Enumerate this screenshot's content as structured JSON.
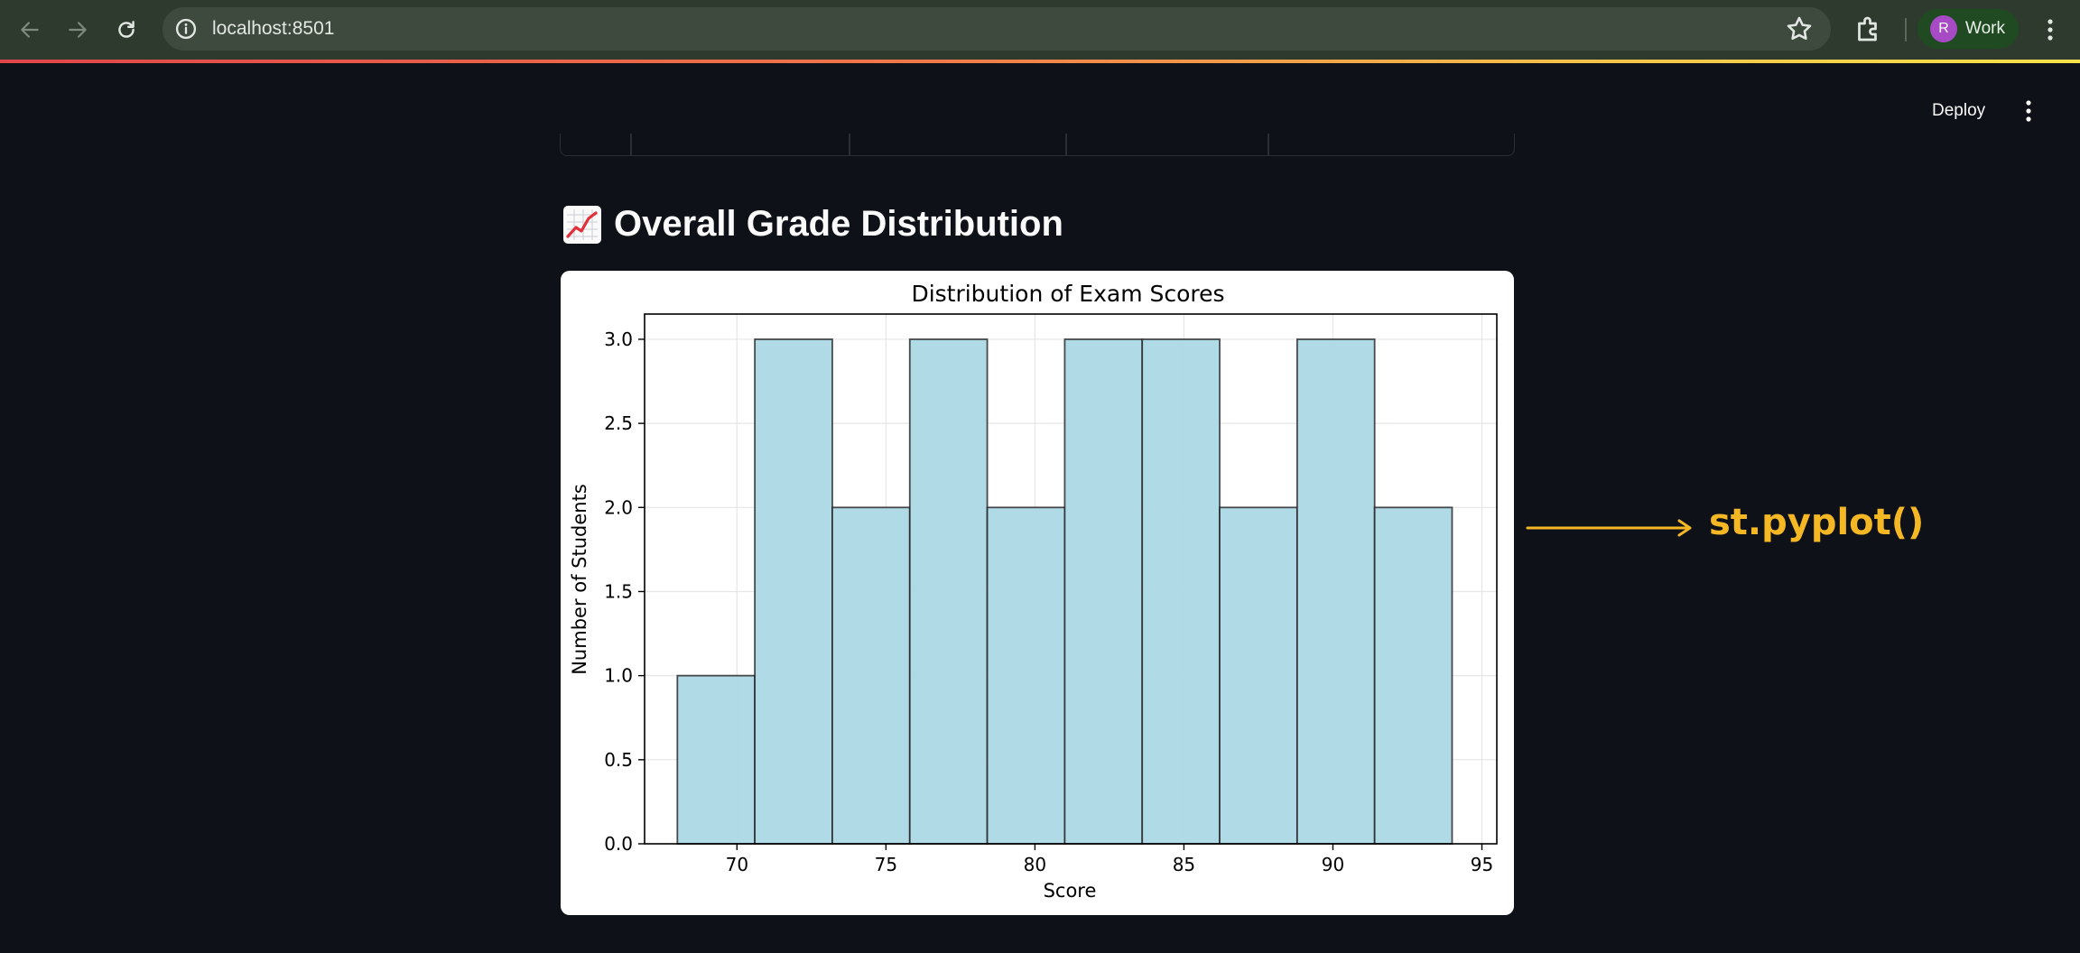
{
  "browser": {
    "url": "localhost:8501",
    "profile": {
      "initial": "R",
      "label": "Work"
    }
  },
  "app_header": {
    "deploy_label": "Deploy"
  },
  "section": {
    "heading": "Overall Grade Distribution",
    "heading_icon": "chart-increasing-emoji"
  },
  "chart_data": {
    "type": "bar",
    "title": "Distribution of Exam Scores",
    "xlabel": "Score",
    "ylabel": "Number of Students",
    "bin_edges": [
      68,
      70.6,
      73.2,
      75.8,
      78.4,
      81,
      83.6,
      86.2,
      88.8,
      91.4,
      94
    ],
    "values": [
      1,
      3,
      2,
      3,
      2,
      3,
      3,
      2,
      3,
      2
    ],
    "xlim": [
      66.9,
      95.5
    ],
    "ylim": [
      0,
      3.15
    ],
    "x_ticks": [
      "70",
      "75",
      "80",
      "85",
      "90",
      "95"
    ],
    "y_ticks": [
      "0.0",
      "0.5",
      "1.0",
      "1.5",
      "2.0",
      "2.5",
      "3.0"
    ],
    "grid": true,
    "bar_color": "#add8e6",
    "edge_color": "#000000"
  },
  "annotation": {
    "label": "st.pyplot()",
    "color": "#f5b824"
  },
  "colors": {
    "app_background": "#0e1117",
    "browser_toolbar": "#2f3a2f",
    "profile_avatar": "#a64bc4"
  }
}
